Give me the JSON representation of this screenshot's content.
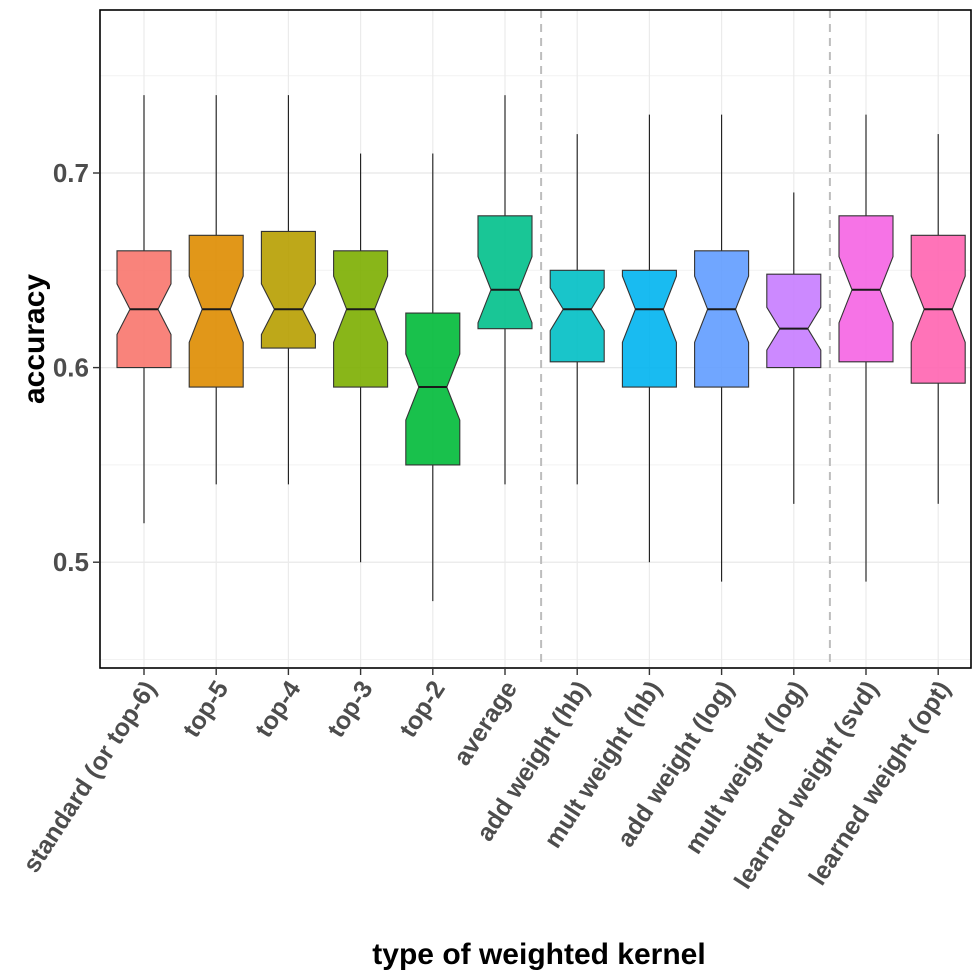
{
  "chart_data": {
    "type": "boxplot",
    "notched": true,
    "xlabel": "type of weighted kernel",
    "ylabel": "accuracy",
    "ylim": [
      0.443,
      0.783
    ],
    "yticks": [
      0.5,
      0.6,
      0.7
    ],
    "ytick_labels": [
      "0.5",
      "0.6",
      "0.7"
    ],
    "grid": true,
    "group_separators_after": [
      "average",
      "mult weight (log)"
    ],
    "categories": [
      "standard (or top-6)",
      "top-5",
      "top-4",
      "top-3",
      "top-2",
      "average",
      "add weight (hb)",
      "mult weight (hb)",
      "add weight (log)",
      "mult weight (log)",
      "learned weight (svd)",
      "learned weight (opt)"
    ],
    "boxes": [
      {
        "min": 0.52,
        "q1": 0.6,
        "median": 0.63,
        "q3": 0.66,
        "max": 0.74,
        "notch": [
          0.617,
          0.643
        ],
        "color": "#F8766D"
      },
      {
        "min": 0.54,
        "q1": 0.59,
        "median": 0.63,
        "q3": 0.668,
        "max": 0.74,
        "notch": [
          0.613,
          0.647
        ],
        "color": "#DE8C00"
      },
      {
        "min": 0.54,
        "q1": 0.61,
        "median": 0.63,
        "q3": 0.67,
        "max": 0.74,
        "notch": [
          0.617,
          0.643
        ],
        "color": "#B79F00"
      },
      {
        "min": 0.5,
        "q1": 0.59,
        "median": 0.63,
        "q3": 0.66,
        "max": 0.71,
        "notch": [
          0.613,
          0.647
        ],
        "color": "#7CAE00"
      },
      {
        "min": 0.48,
        "q1": 0.55,
        "median": 0.59,
        "q3": 0.628,
        "max": 0.71,
        "notch": [
          0.573,
          0.607
        ],
        "color": "#00BA38"
      },
      {
        "min": 0.54,
        "q1": 0.62,
        "median": 0.64,
        "q3": 0.678,
        "max": 0.74,
        "notch": [
          0.623,
          0.657
        ],
        "color": "#00C08B"
      },
      {
        "min": 0.54,
        "q1": 0.603,
        "median": 0.63,
        "q3": 0.65,
        "max": 0.72,
        "notch": [
          0.619,
          0.641
        ],
        "color": "#00BFC4"
      },
      {
        "min": 0.5,
        "q1": 0.59,
        "median": 0.63,
        "q3": 0.65,
        "max": 0.73,
        "notch": [
          0.613,
          0.647
        ],
        "color": "#00B4F0"
      },
      {
        "min": 0.49,
        "q1": 0.59,
        "median": 0.63,
        "q3": 0.66,
        "max": 0.73,
        "notch": [
          0.613,
          0.647
        ],
        "color": "#619CFF"
      },
      {
        "min": 0.53,
        "q1": 0.6,
        "median": 0.62,
        "q3": 0.648,
        "max": 0.69,
        "notch": [
          0.609,
          0.631
        ],
        "color": "#C77CFF"
      },
      {
        "min": 0.49,
        "q1": 0.603,
        "median": 0.64,
        "q3": 0.678,
        "max": 0.73,
        "notch": [
          0.623,
          0.657
        ],
        "color": "#F564E3"
      },
      {
        "min": 0.53,
        "q1": 0.592,
        "median": 0.63,
        "q3": 0.668,
        "max": 0.72,
        "notch": [
          0.613,
          0.647
        ],
        "color": "#FF64B0"
      }
    ]
  }
}
